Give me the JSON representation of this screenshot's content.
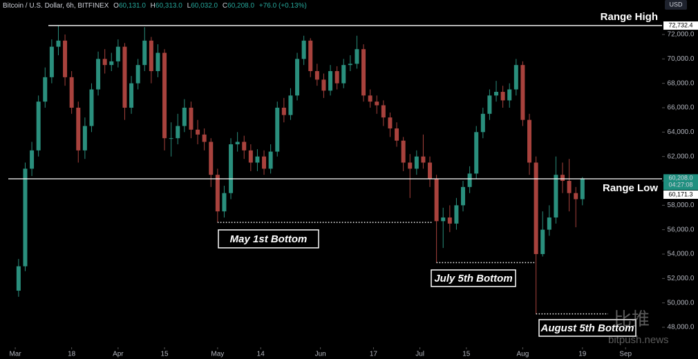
{
  "chart_data": {
    "type": "candlestick",
    "header": {
      "title": "Bitcoin / U.S. Dollar, 6h, BITFINEX",
      "o": "O",
      "o_value": "60,131.0",
      "h": "H",
      "h_value": "60,313.0",
      "l": "L",
      "l_value": "60,032.0",
      "c": "C",
      "c_value": "60,208.0",
      "change": "+76.0 (+0.13%)"
    },
    "currency": "USD",
    "x": [
      1,
      3,
      5,
      7,
      9,
      11,
      13,
      15,
      17,
      19,
      21,
      23,
      25,
      27,
      29,
      31,
      33,
      35,
      37,
      39,
      41,
      43,
      45,
      47,
      49,
      51,
      53,
      55,
      57,
      59,
      61,
      63,
      65,
      67,
      69,
      71,
      73,
      75,
      77,
      79,
      81,
      83,
      85,
      87,
      89,
      91,
      93,
      95,
      97,
      99,
      101,
      103,
      105,
      107,
      109,
      111,
      113,
      115,
      117,
      119,
      121,
      123,
      125,
      127,
      129,
      131,
      133,
      135,
      137,
      139,
      141,
      143,
      145,
      147,
      149,
      151,
      153,
      155,
      157,
      159,
      161,
      163,
      165,
      167,
      169,
      171
    ],
    "open": [
      51000,
      53000,
      61000,
      62500,
      66500,
      68500,
      71000,
      71500,
      68500,
      66000,
      62500,
      64500,
      67500,
      70000,
      69500,
      69800,
      71000,
      66000,
      68000,
      69500,
      71500,
      69000,
      70500,
      63500,
      63500,
      64500,
      66000,
      64200,
      63800,
      63200,
      60500,
      57500,
      59000,
      63000,
      63200,
      62500,
      61500,
      62000,
      61000,
      62400,
      66000,
      65400,
      67000,
      70000,
      71500,
      69000,
      68300,
      67400,
      69000,
      68000,
      69500,
      69600,
      70800,
      67000,
      66500,
      66200,
      65200,
      64300,
      63300,
      61500,
      61000,
      62000,
      61500,
      60200,
      56700,
      57000,
      56500,
      58000,
      59500,
      60600,
      64000,
      65500,
      67000,
      67300,
      66600,
      67500,
      69500,
      65000,
      61500,
      54000,
      56000,
      57000,
      60500,
      60000,
      59000,
      58500
    ],
    "high": [
      53600,
      61500,
      63200,
      67000,
      69300,
      71600,
      72732,
      72000,
      69000,
      66500,
      65200,
      68000,
      70600,
      70800,
      70500,
      71600,
      71300,
      68600,
      70000,
      72600,
      71800,
      71200,
      70800,
      64800,
      65500,
      66700,
      66500,
      65000,
      64300,
      63500,
      61000,
      59600,
      63500,
      64000,
      63700,
      63000,
      62600,
      62500,
      63000,
      66500,
      66800,
      67600,
      70500,
      71900,
      71700,
      69600,
      68800,
      69500,
      69400,
      70000,
      70300,
      71900,
      71200,
      67500,
      67000,
      66600,
      65600,
      64800,
      63600,
      62200,
      62500,
      63800,
      62000,
      60500,
      57800,
      58000,
      58600,
      60000,
      61200,
      64500,
      66000,
      67500,
      68200,
      67800,
      68000,
      70000,
      69800,
      65500,
      62000,
      57500,
      58000,
      62000,
      61500,
      61800,
      59500,
      60313
    ],
    "low": [
      50500,
      52600,
      60400,
      62000,
      66000,
      68000,
      70300,
      67800,
      65500,
      61500,
      61800,
      64000,
      67000,
      68800,
      69000,
      69300,
      65000,
      65500,
      67500,
      69000,
      68000,
      68500,
      62500,
      62000,
      63000,
      64000,
      63500,
      63000,
      62500,
      59500,
      56600,
      57000,
      58500,
      62400,
      61800,
      60800,
      60800,
      60500,
      60600,
      62000,
      64800,
      65000,
      66600,
      69500,
      68500,
      67800,
      66800,
      67000,
      67500,
      67600,
      69000,
      69200,
      66500,
      66000,
      65500,
      64500,
      63600,
      62800,
      60800,
      58600,
      60500,
      61000,
      59500,
      53300,
      54500,
      55800,
      56000,
      57500,
      59000,
      60200,
      63500,
      65000,
      66500,
      66000,
      66000,
      67000,
      64500,
      60500,
      49100,
      53800,
      55500,
      56500,
      59000,
      57500,
      56200,
      58000
    ],
    "close": [
      53000,
      61000,
      62500,
      66500,
      68500,
      71000,
      71500,
      68500,
      66000,
      62500,
      64500,
      67500,
      70000,
      69500,
      69800,
      71000,
      66000,
      68000,
      69500,
      71500,
      69000,
      70500,
      63500,
      63500,
      64500,
      66000,
      64200,
      63800,
      63200,
      60500,
      57500,
      59000,
      63000,
      63200,
      62500,
      61500,
      62000,
      61000,
      62400,
      66000,
      65400,
      67000,
      70000,
      71500,
      69000,
      68300,
      67400,
      69000,
      68000,
      69500,
      69600,
      70800,
      67000,
      66500,
      66200,
      65200,
      64300,
      63300,
      61500,
      61000,
      62000,
      61500,
      60200,
      56700,
      57000,
      56500,
      58000,
      59500,
      60600,
      64000,
      65500,
      67000,
      67300,
      66600,
      67500,
      69500,
      65000,
      61500,
      54000,
      56000,
      57000,
      60500,
      60000,
      59000,
      58500,
      60208
    ],
    "up_color": "#2a8f7d",
    "down_color": "#a8423d",
    "xlim": [
      -4.6,
      195
    ],
    "ylim": [
      46530,
      74830
    ],
    "xticks": [
      {
        "value": 0,
        "label": "Mar"
      },
      {
        "value": 17,
        "label": "18"
      },
      {
        "value": 31,
        "label": "Apr"
      },
      {
        "value": 45,
        "label": "15"
      },
      {
        "value": 61,
        "label": "May"
      },
      {
        "value": 74,
        "label": "14"
      },
      {
        "value": 92,
        "label": "Jun"
      },
      {
        "value": 108,
        "label": "17"
      },
      {
        "value": 122,
        "label": "Jul"
      },
      {
        "value": 136,
        "label": "15"
      },
      {
        "value": 153,
        "label": "Aug"
      },
      {
        "value": 171,
        "label": "19"
      },
      {
        "value": 184,
        "label": "Sep"
      }
    ],
    "yticks": [
      {
        "value": 48000,
        "label": "48,000.0"
      },
      {
        "value": 50000,
        "label": "50,000.0"
      },
      {
        "value": 52000,
        "label": "52,000.0"
      },
      {
        "value": 54000,
        "label": "54,000.0"
      },
      {
        "value": 56000,
        "label": "56,000.0"
      },
      {
        "value": 58000,
        "label": "58,000.0"
      },
      {
        "value": 60000,
        "label": "60,000.0"
      },
      {
        "value": 62000,
        "label": "62,000.0"
      },
      {
        "value": 64000,
        "label": "64,000.0"
      },
      {
        "value": 66000,
        "label": "66,000.0"
      },
      {
        "value": 68000,
        "label": "68,000.0"
      },
      {
        "value": 70000,
        "label": "70,000.0"
      },
      {
        "value": 72000,
        "label": "72,000.0"
      }
    ],
    "levels": [
      {
        "name": "Range High",
        "value": 72732.4,
        "label": "72,732.4"
      },
      {
        "name": "Range Low",
        "value": 60171.3,
        "label": "60,171.3"
      }
    ],
    "current": {
      "value": 60208.0,
      "label": "60,208.0",
      "countdown": "04:27:08"
    },
    "bottoms": [
      {
        "name": "May 1st Bottom",
        "value": 56600,
        "x": 61
      },
      {
        "name": "July 5th Bottom",
        "value": 53300,
        "x": 127
      },
      {
        "name": "August 5th Bottom",
        "value": 49100,
        "x": 157
      }
    ],
    "watermark": {
      "cn": "比推",
      "en": "bitpush.news"
    }
  }
}
